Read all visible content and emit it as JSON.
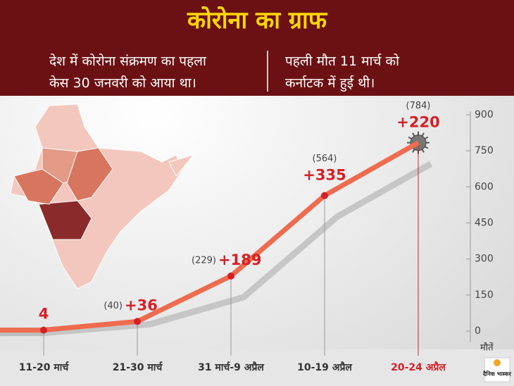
{
  "header": {
    "title": "कोरोना का ग्राफ",
    "note_left": [
      "देश में कोरोना संक्रमण का पहला",
      "केस 30 जनवरी को आया था।"
    ],
    "note_right": [
      "पहली मौत 11 मार्च को",
      "कर्नाटक में हुई थी।"
    ]
  },
  "chart_data": {
    "type": "line",
    "categories": [
      "11-20 मार्च",
      "21-30 मार्च",
      "31 मार्च-9 अप्रैल",
      "10-19 अप्रैल",
      "20-24 अप्रैल"
    ],
    "values": [
      4,
      40,
      229,
      564,
      784
    ],
    "value_labels": [
      null,
      "(40)",
      "(229)",
      "(564)",
      "(784)"
    ],
    "color": "#ef6b4e",
    "new_deaths": {
      "values": [
        4,
        36,
        189,
        335,
        220
      ],
      "value_labels": [
        "4",
        "+36",
        "+189",
        "+335",
        "+220"
      ],
      "color": "#d62027"
    },
    "ylim": [
      0,
      900
    ],
    "yticks": [
      0,
      150,
      300,
      450,
      600,
      750,
      900
    ],
    "y_label": "मौतें"
  },
  "logo": "दैनिक भास्कर"
}
